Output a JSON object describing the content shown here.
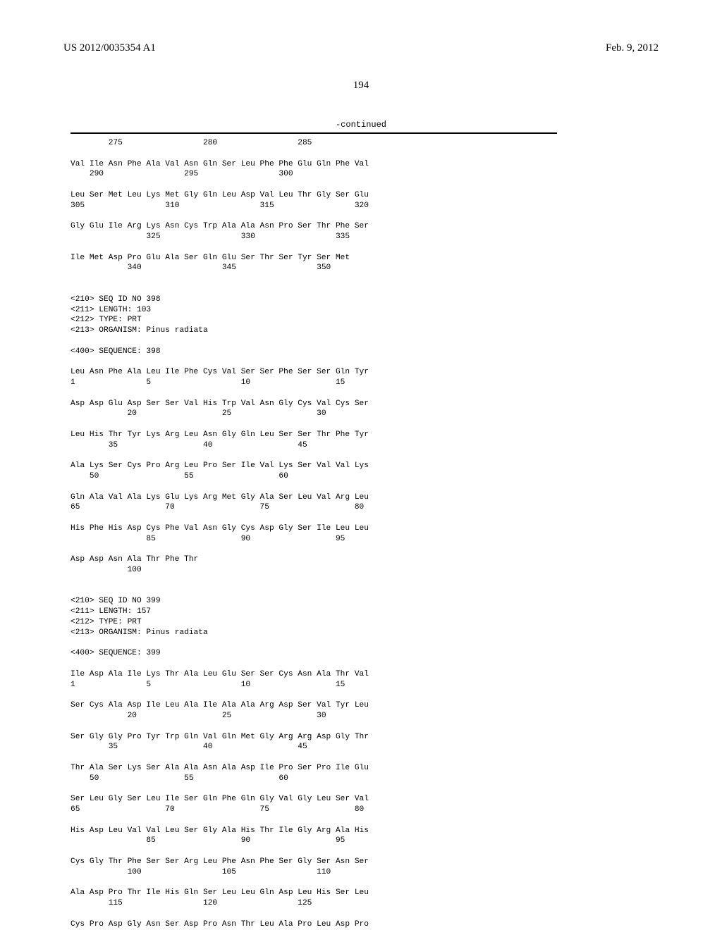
{
  "header": {
    "pub_number": "US 2012/0035354 A1",
    "pub_date": "Feb. 9, 2012"
  },
  "page_number": "194",
  "continued_label": "-continued",
  "seq": {
    "l01": "        275                 280                 285",
    "l02": "",
    "l03": "Val Ile Asn Phe Ala Val Asn Gln Ser Leu Phe Phe Glu Gln Phe Val",
    "l04": "    290                 295                 300",
    "l05": "",
    "l06": "Leu Ser Met Leu Lys Met Gly Gln Leu Asp Val Leu Thr Gly Ser Glu",
    "l07": "305                 310                 315                 320",
    "l08": "",
    "l09": "Gly Glu Ile Arg Lys Asn Cys Trp Ala Ala Asn Pro Ser Thr Phe Ser",
    "l10": "                325                 330                 335",
    "l11": "",
    "l12": "Ile Met Asp Pro Glu Ala Ser Gln Glu Ser Thr Ser Tyr Ser Met",
    "l13": "            340                 345                 350",
    "l14": "",
    "l15": "",
    "l16": "<210> SEQ ID NO 398",
    "l17": "<211> LENGTH: 103",
    "l18": "<212> TYPE: PRT",
    "l19": "<213> ORGANISM: Pinus radiata",
    "l20": "",
    "l21": "<400> SEQUENCE: 398",
    "l22": "",
    "l23": "Leu Asn Phe Ala Leu Ile Phe Cys Val Ser Ser Phe Ser Ser Gln Tyr",
    "l24": "1               5                   10                  15",
    "l25": "",
    "l26": "Asp Asp Glu Asp Ser Ser Val His Trp Val Asn Gly Cys Val Cys Ser",
    "l27": "            20                  25                  30",
    "l28": "",
    "l29": "Leu His Thr Tyr Lys Arg Leu Asn Gly Gln Leu Ser Ser Thr Phe Tyr",
    "l30": "        35                  40                  45",
    "l31": "",
    "l32": "Ala Lys Ser Cys Pro Arg Leu Pro Ser Ile Val Lys Ser Val Val Lys",
    "l33": "    50                  55                  60",
    "l34": "",
    "l35": "Gln Ala Val Ala Lys Glu Lys Arg Met Gly Ala Ser Leu Val Arg Leu",
    "l36": "65                  70                  75                  80",
    "l37": "",
    "l38": "His Phe His Asp Cys Phe Val Asn Gly Cys Asp Gly Ser Ile Leu Leu",
    "l39": "                85                  90                  95",
    "l40": "",
    "l41": "Asp Asp Asn Ala Thr Phe Thr",
    "l42": "            100",
    "l43": "",
    "l44": "",
    "l45": "<210> SEQ ID NO 399",
    "l46": "<211> LENGTH: 157",
    "l47": "<212> TYPE: PRT",
    "l48": "<213> ORGANISM: Pinus radiata",
    "l49": "",
    "l50": "<400> SEQUENCE: 399",
    "l51": "",
    "l52": "Ile Asp Ala Ile Lys Thr Ala Leu Glu Ser Ser Cys Asn Ala Thr Val",
    "l53": "1               5                   10                  15",
    "l54": "",
    "l55": "Ser Cys Ala Asp Ile Leu Ala Ile Ala Ala Arg Asp Ser Val Tyr Leu",
    "l56": "            20                  25                  30",
    "l57": "",
    "l58": "Ser Gly Gly Pro Tyr Trp Gln Val Gln Met Gly Arg Arg Asp Gly Thr",
    "l59": "        35                  40                  45",
    "l60": "",
    "l61": "Thr Ala Ser Lys Ser Ala Ala Asn Ala Asp Ile Pro Ser Pro Ile Glu",
    "l62": "    50                  55                  60",
    "l63": "",
    "l64": "Ser Leu Gly Ser Leu Ile Ser Gln Phe Gln Gly Val Gly Leu Ser Val",
    "l65": "65                  70                  75                  80",
    "l66": "",
    "l67": "His Asp Leu Val Val Leu Ser Gly Ala His Thr Ile Gly Arg Ala His",
    "l68": "                85                  90                  95",
    "l69": "",
    "l70": "Cys Gly Thr Phe Ser Ser Arg Leu Phe Asn Phe Ser Gly Ser Asn Ser",
    "l71": "            100                 105                 110",
    "l72": "",
    "l73": "Ala Asp Pro Thr Ile His Gln Ser Leu Leu Gln Asp Leu His Ser Leu",
    "l74": "        115                 120                 125",
    "l75": "",
    "l76": "Cys Pro Asp Gly Asn Ser Asp Pro Asn Thr Leu Ala Pro Leu Asp Pro"
  }
}
